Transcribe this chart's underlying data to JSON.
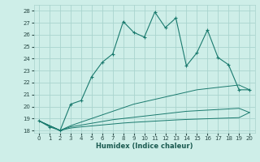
{
  "bg_color": "#ceeee8",
  "grid_color": "#aad4ce",
  "line_color": "#1a7a6e",
  "xlabel": "Humidex (Indice chaleur)",
  "xlim": [
    -0.5,
    20.5
  ],
  "ylim": [
    17.8,
    28.5
  ],
  "xticks": [
    0,
    1,
    2,
    3,
    4,
    5,
    6,
    7,
    8,
    9,
    10,
    11,
    12,
    13,
    14,
    15,
    16,
    17,
    18,
    19,
    20
  ],
  "yticks": [
    18,
    19,
    20,
    21,
    22,
    23,
    24,
    25,
    26,
    27,
    28
  ],
  "main_line_x": [
    0,
    1,
    2,
    3,
    4,
    5,
    6,
    7,
    8,
    9,
    10,
    11,
    12,
    13,
    14,
    15,
    16,
    17,
    18,
    19,
    20
  ],
  "main_line_y": [
    18.8,
    18.3,
    18.0,
    20.2,
    20.5,
    22.5,
    23.7,
    24.4,
    27.1,
    26.2,
    25.8,
    27.9,
    26.6,
    27.4,
    23.4,
    24.5,
    26.4,
    24.1,
    23.5,
    21.4,
    21.4
  ],
  "line2_x": [
    0,
    2,
    3,
    4,
    5,
    6,
    7,
    8,
    9,
    10,
    11,
    12,
    13,
    14,
    15,
    16,
    17,
    18,
    19,
    20
  ],
  "line2_y": [
    18.8,
    18.0,
    18.4,
    18.7,
    19.0,
    19.3,
    19.6,
    19.9,
    20.2,
    20.4,
    20.6,
    20.8,
    21.0,
    21.2,
    21.4,
    21.5,
    21.6,
    21.7,
    21.8,
    21.4
  ],
  "line3_x": [
    0,
    2,
    3,
    4,
    5,
    6,
    7,
    8,
    9,
    10,
    11,
    12,
    13,
    14,
    15,
    16,
    17,
    18,
    19,
    20
  ],
  "line3_y": [
    18.8,
    18.0,
    18.3,
    18.45,
    18.6,
    18.75,
    18.9,
    19.0,
    19.1,
    19.2,
    19.3,
    19.4,
    19.5,
    19.6,
    19.65,
    19.7,
    19.75,
    19.8,
    19.85,
    19.5
  ],
  "line4_x": [
    0,
    2,
    3,
    4,
    5,
    6,
    7,
    8,
    9,
    10,
    11,
    12,
    13,
    14,
    15,
    16,
    17,
    18,
    19,
    20
  ],
  "line4_y": [
    18.8,
    18.0,
    18.2,
    18.3,
    18.38,
    18.46,
    18.54,
    18.62,
    18.68,
    18.73,
    18.78,
    18.83,
    18.88,
    18.92,
    18.95,
    18.98,
    19.01,
    19.04,
    19.07,
    19.5
  ]
}
